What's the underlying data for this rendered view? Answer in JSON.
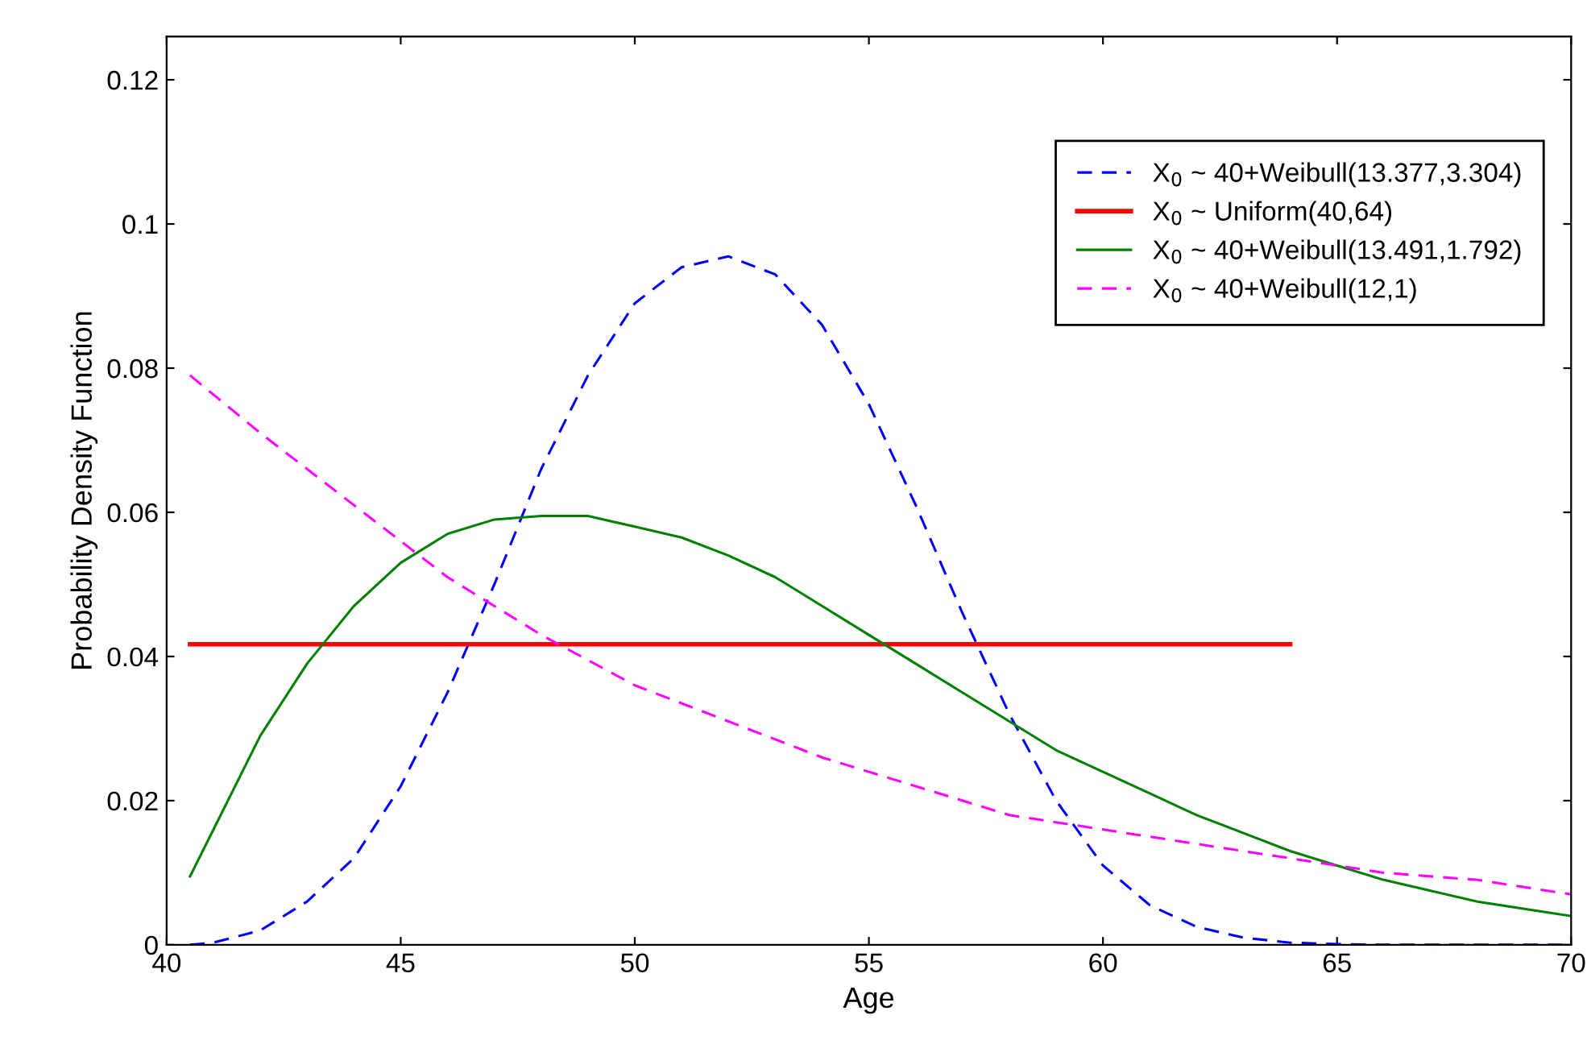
{
  "chart_data": {
    "type": "line",
    "xlabel": "Age",
    "ylabel": "Probability Density Function",
    "xlim": [
      40,
      70
    ],
    "xticks": [
      40,
      45,
      50,
      55,
      60,
      65,
      70
    ],
    "ylim": [
      0,
      0.126
    ],
    "yticks": [
      0,
      0.02,
      0.04,
      0.06,
      0.08,
      0.1,
      0.12
    ],
    "grid": false,
    "legend": "top right",
    "marker": "none",
    "series": [
      {
        "name": "X$_{0}$ ~ 40+Weibull(13.377,3.304)",
        "color": "#0000ff",
        "line_style": "dashed",
        "x": [
          40.5,
          41,
          42,
          43,
          44,
          45,
          46,
          47,
          48,
          49,
          50,
          51,
          52,
          53,
          54,
          55,
          56,
          57,
          58,
          59,
          60,
          61,
          62,
          63,
          64,
          65,
          66,
          70
        ],
        "values": [
          0,
          0.0003,
          0.002,
          0.006,
          0.012,
          0.022,
          0.035,
          0.05,
          0.066,
          0.079,
          0.089,
          0.094,
          0.0955,
          0.093,
          0.086,
          0.075,
          0.061,
          0.046,
          0.032,
          0.02,
          0.011,
          0.0055,
          0.0025,
          0.001,
          0.0003,
          0.0001,
          0,
          0
        ]
      },
      {
        "name": "X$_{0}$ ~ Uniform(40,64)",
        "color": "#ff0000",
        "line_style": "solid",
        "x": [
          40.5,
          64
        ],
        "values": [
          0.0417,
          0.0417
        ]
      },
      {
        "name": "X$_{0}$ ~ 40+Weibull(13.491,1.792)",
        "color": "#008000",
        "line_style": "solid",
        "x": [
          40.5,
          41,
          42,
          43,
          44,
          45,
          46,
          47,
          48,
          49,
          50,
          51,
          52,
          53,
          54,
          55,
          56,
          57,
          58,
          59,
          60,
          61,
          62,
          63,
          64,
          65,
          66,
          67,
          68,
          69,
          70
        ],
        "values": [
          0.0095,
          0.016,
          0.029,
          0.039,
          0.047,
          0.053,
          0.057,
          0.059,
          0.0595,
          0.0595,
          0.058,
          0.0565,
          0.054,
          0.051,
          0.047,
          0.043,
          0.039,
          0.035,
          0.031,
          0.027,
          0.024,
          0.021,
          0.018,
          0.0155,
          0.013,
          0.011,
          0.009,
          0.0075,
          0.006,
          0.005,
          0.004
        ]
      },
      {
        "name": "X$_{0}$ ~ 40+Weibull(12,1)",
        "color": "#ff00ff",
        "line_style": "dashed",
        "x": [
          40.5,
          42,
          44,
          46,
          48,
          50,
          52,
          54,
          56,
          58,
          60,
          62,
          64,
          66,
          68,
          70
        ],
        "values": [
          0.079,
          0.071,
          0.061,
          0.051,
          0.043,
          0.036,
          0.031,
          0.026,
          0.022,
          0.018,
          0.016,
          0.014,
          0.012,
          0.01,
          0.009,
          0.007
        ]
      }
    ]
  }
}
